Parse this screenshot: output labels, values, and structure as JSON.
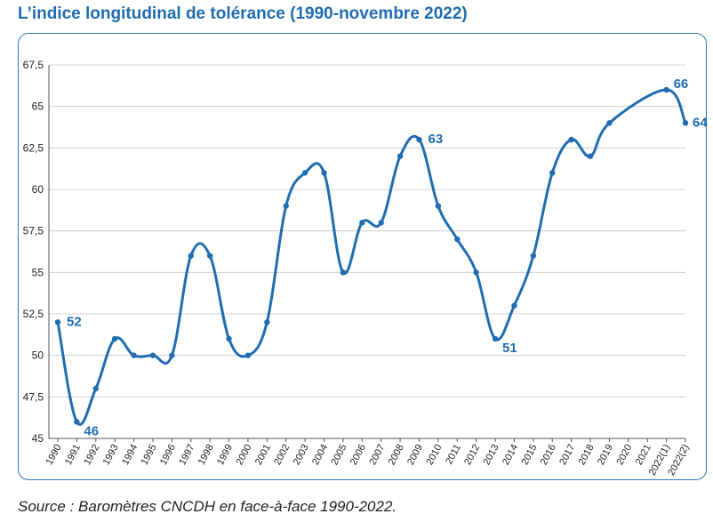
{
  "title": "L’indice longitudinal de tolérance (1990-novembre 2022)",
  "source": "Source : Baromètres CNCDH en face-à-face 1990-2022.",
  "colors": {
    "line": "#1f6cb0",
    "frame": "#2a78c0",
    "title": "#1f6cb0",
    "grid": "#c8c8c8"
  },
  "chart_data": {
    "type": "line",
    "title": "L’indice longitudinal de tolérance (1990-novembre 2022)",
    "xlabel": "",
    "ylabel": "",
    "ylim": [
      45,
      67.5
    ],
    "yticks": [
      "45",
      "47,5",
      "50",
      "52,5",
      "55",
      "57,5",
      "60",
      "62,5",
      "65",
      "67,5"
    ],
    "grid": "horizontal",
    "legend": "none",
    "categories": [
      "1990",
      "1991",
      "1992",
      "1993",
      "1994",
      "1995",
      "1996",
      "1997",
      "1998",
      "1999",
      "2000",
      "2001",
      "2002",
      "2003",
      "2004",
      "2005",
      "2006",
      "2007",
      "2008",
      "2009",
      "2010",
      "2011",
      "2012",
      "2013",
      "2014",
      "2015",
      "2016",
      "2017",
      "2018",
      "2019",
      "2020",
      "2021",
      "2022(1)",
      "2022(2)"
    ],
    "series": [
      {
        "values": [
          52,
          46,
          48,
          51,
          50,
          50,
          50,
          56,
          56,
          51,
          50,
          52,
          59,
          61,
          61,
          55,
          58,
          58,
          62,
          63,
          59,
          57,
          55,
          51,
          53,
          56,
          61,
          63,
          62,
          64,
          null,
          null,
          66,
          64
        ]
      }
    ],
    "data_labels": [
      {
        "x": "1990",
        "value": 52,
        "text": "52"
      },
      {
        "x": "1991",
        "value": 46,
        "text": "46"
      },
      {
        "x": "2009",
        "value": 63,
        "text": "63"
      },
      {
        "x": "2013",
        "value": 51,
        "text": "51"
      },
      {
        "x": "2022(1)",
        "value": 66,
        "text": "66"
      },
      {
        "x": "2022(2)",
        "value": 64,
        "text": "64"
      }
    ]
  }
}
